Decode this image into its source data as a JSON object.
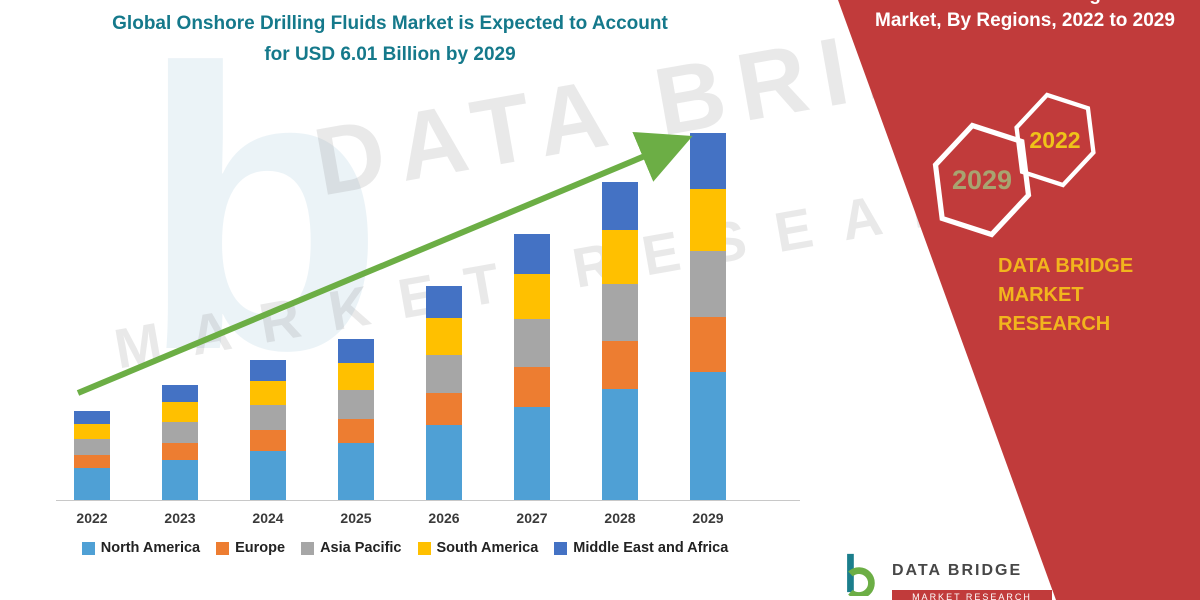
{
  "title": {
    "line1": "Global Onshore Drilling Fluids Market is Expected to Account",
    "line2": "for USD 6.01 Billion by 2029"
  },
  "panel": {
    "heading_top": "Global Onshore Drilling Fluids",
    "heading": "Market, By Regions, 2022 to 2029",
    "hexagons": [
      {
        "label": "2029"
      },
      {
        "label": "2022"
      }
    ],
    "brand_line1": "DATA BRIDGE MARKET",
    "brand_line2": "RESEARCH",
    "bg_color": "#C13B3B",
    "brand_color": "#F2B51D"
  },
  "watermark": {
    "line1": "DATA BRIDGE",
    "line2": "MARKET RESEARCH"
  },
  "footer_logo": {
    "text": "DATA BRIDGE",
    "sub": "MARKET RESEARCH"
  },
  "colors": {
    "title_teal": "#15798B",
    "arrow_green": "#6CAE45",
    "axis_gray": "#c8c8c8"
  },
  "chart_data": {
    "type": "bar",
    "stacked": true,
    "title": "Global Onshore Drilling Fluids Market is Expected to Account for USD 6.01 Billion by 2029",
    "xlabel": "",
    "ylabel": "",
    "ylim": [
      0,
      6.5
    ],
    "grid": false,
    "legend_position": "bottom",
    "categories": [
      "2022",
      "2023",
      "2024",
      "2025",
      "2026",
      "2027",
      "2028",
      "2029"
    ],
    "series": [
      {
        "name": "North America",
        "color": "#4FA0D5",
        "values": [
          0.52,
          0.66,
          0.8,
          0.94,
          1.23,
          1.52,
          1.82,
          2.1
        ]
      },
      {
        "name": "Europe",
        "color": "#ED7D31",
        "values": [
          0.22,
          0.28,
          0.34,
          0.4,
          0.53,
          0.65,
          0.78,
          0.9
        ]
      },
      {
        "name": "Asia Pacific",
        "color": "#A6A6A6",
        "values": [
          0.26,
          0.34,
          0.41,
          0.48,
          0.63,
          0.78,
          0.93,
          1.08
        ]
      },
      {
        "name": "South America",
        "color": "#FFC000",
        "values": [
          0.25,
          0.32,
          0.39,
          0.45,
          0.6,
          0.74,
          0.88,
          1.02
        ]
      },
      {
        "name": "Middle East and Africa",
        "color": "#4472C4",
        "values": [
          0.22,
          0.28,
          0.35,
          0.4,
          0.53,
          0.65,
          0.78,
          0.91
        ]
      }
    ],
    "totals_usd_billion": [
      1.47,
      1.88,
      2.29,
      2.67,
      3.52,
      4.34,
      5.19,
      6.01
    ]
  }
}
